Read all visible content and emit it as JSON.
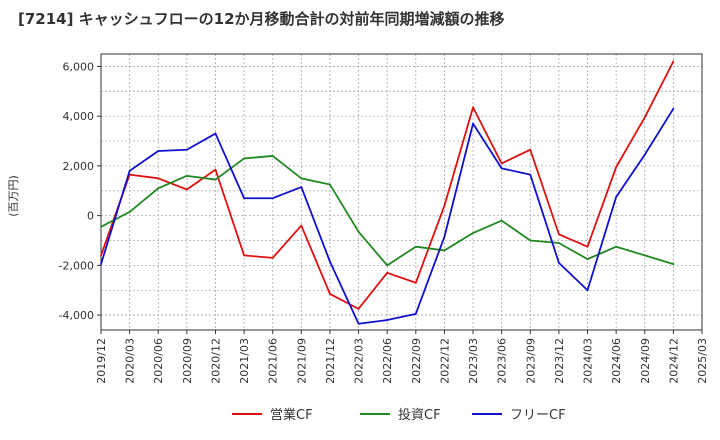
{
  "chart_data": {
    "type": "line",
    "title": "[7214]  キャッシュフローの12か月移動合計の対前年同期増減額の推移",
    "xlabel": "",
    "ylabel": "(百万円)",
    "ylim": [
      -4600,
      6500
    ],
    "yticks": [
      -4000,
      -2000,
      0,
      2000,
      4000,
      6000
    ],
    "ytick_labels": [
      "-4,000",
      "-2,000",
      "0",
      "2,000",
      "4,000",
      "6,000"
    ],
    "x_ticks": [
      "2019/12",
      "2020/03",
      "2020/06",
      "2020/09",
      "2020/12",
      "2021/03",
      "2021/06",
      "2021/09",
      "2021/12",
      "2022/03",
      "2022/06",
      "2022/09",
      "2022/12",
      "2023/03",
      "2023/06",
      "2023/09",
      "2023/12",
      "2024/03",
      "2024/06",
      "2024/09",
      "2024/12",
      "2025/03"
    ],
    "grid": true,
    "legend_position": "bottom",
    "series": [
      {
        "name": "営業CF",
        "color": "#dd1111",
        "x": [
          "2019/12",
          "2020/03",
          "2020/06",
          "2020/09",
          "2020/12",
          "2021/03",
          "2021/06",
          "2021/09",
          "2021/12",
          "2022/03",
          "2022/06",
          "2022/09",
          "2022/12",
          "2023/03",
          "2023/06",
          "2023/09",
          "2023/12",
          "2024/03",
          "2024/06",
          "2024/09",
          "2024/12"
        ],
        "values": [
          -1600,
          1650,
          1500,
          1050,
          1850,
          -1600,
          -1700,
          -400,
          -3150,
          -3750,
          -2300,
          -2700,
          400,
          4350,
          2100,
          2650,
          -750,
          -1250,
          1950,
          3950,
          6200
        ]
      },
      {
        "name": "投資CF",
        "color": "#228822",
        "x": [
          "2019/12",
          "2020/03",
          "2020/06",
          "2020/09",
          "2020/12",
          "2021/03",
          "2021/06",
          "2021/09",
          "2021/12",
          "2022/03",
          "2022/06",
          "2022/09",
          "2022/12",
          "2023/03",
          "2023/06",
          "2023/09",
          "2023/12",
          "2024/03",
          "2024/06",
          "2024/09",
          "2024/12"
        ],
        "values": [
          -450,
          150,
          1100,
          1600,
          1450,
          2300,
          2400,
          1500,
          1250,
          -650,
          -2000,
          -1250,
          -1400,
          -700,
          -200,
          -1000,
          -1100,
          -1750,
          -1250,
          -1600,
          -1950
        ]
      },
      {
        "name": "フリーCF",
        "color": "#1111cc",
        "x": [
          "2019/12",
          "2020/03",
          "2020/06",
          "2020/09",
          "2020/12",
          "2021/03",
          "2021/06",
          "2021/09",
          "2021/12",
          "2022/03",
          "2022/06",
          "2022/09",
          "2022/12",
          "2023/03",
          "2023/06",
          "2023/09",
          "2023/12",
          "2024/03",
          "2024/06",
          "2024/09",
          "2024/12"
        ],
        "values": [
          -1950,
          1800,
          2600,
          2650,
          3300,
          700,
          700,
          1150,
          -1850,
          -4350,
          -4200,
          -3950,
          -850,
          3700,
          1900,
          1650,
          -1900,
          -3000,
          750,
          2450,
          4300
        ]
      }
    ]
  }
}
